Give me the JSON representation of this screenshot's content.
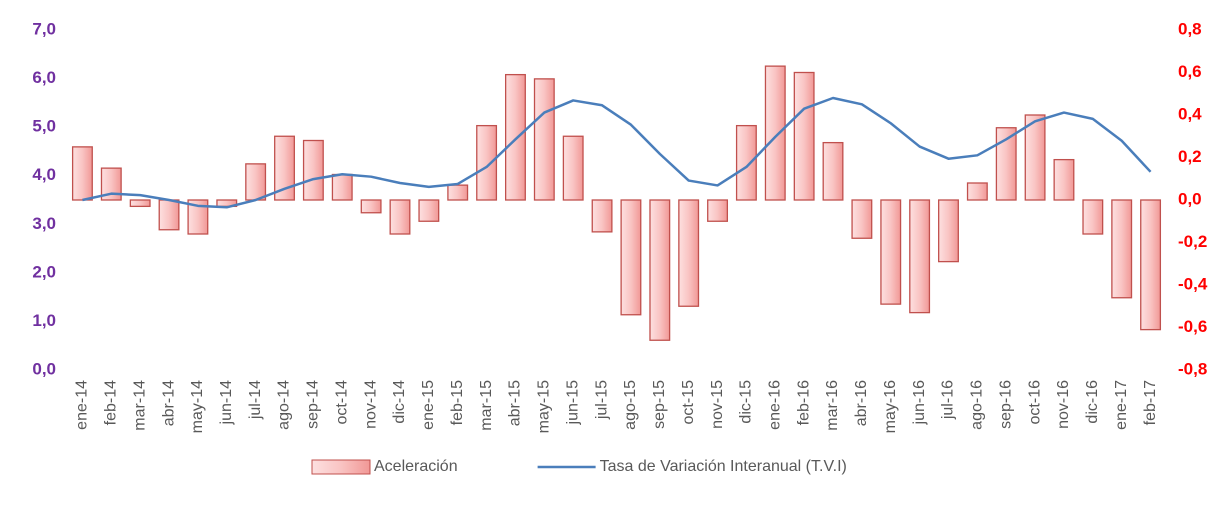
{
  "chart_data": {
    "type": "bar-line",
    "categories": [
      "ene-14",
      "feb-14",
      "mar-14",
      "abr-14",
      "may-14",
      "jun-14",
      "jul-14",
      "ago-14",
      "sep-14",
      "oct-14",
      "nov-14",
      "dic-14",
      "ene-15",
      "feb-15",
      "mar-15",
      "abr-15",
      "may-15",
      "jun-15",
      "jul-15",
      "ago-15",
      "sep-15",
      "oct-15",
      "nov-15",
      "dic-15",
      "ene-16",
      "feb-16",
      "mar-16",
      "abr-16",
      "may-16",
      "jun-16",
      "jul-16",
      "ago-16",
      "sep-16",
      "oct-16",
      "nov-16",
      "dic-16",
      "ene-17",
      "feb-17"
    ],
    "series": [
      {
        "name": "Aceleración",
        "type": "bar",
        "axis": "y2",
        "color": "#c0504d",
        "values": [
          0.25,
          0.15,
          -0.03,
          -0.14,
          -0.16,
          -0.03,
          0.17,
          0.3,
          0.28,
          0.12,
          -0.06,
          -0.16,
          -0.1,
          0.07,
          0.35,
          0.59,
          0.57,
          0.3,
          -0.15,
          -0.54,
          -0.66,
          -0.5,
          -0.1,
          0.35,
          0.63,
          0.6,
          0.27,
          -0.18,
          -0.49,
          -0.53,
          -0.29,
          0.08,
          0.34,
          0.4,
          0.19,
          -0.16,
          -0.46,
          -0.61
        ]
      },
      {
        "name": "Tasa de Variación Interanual (T.V.I)",
        "type": "line",
        "color": "#4a7ebb",
        "values": [
          3.5,
          3.63,
          3.6,
          3.5,
          3.38,
          3.35,
          3.5,
          3.73,
          3.93,
          4.03,
          3.98,
          3.85,
          3.77,
          3.83,
          4.18,
          4.75,
          5.3,
          5.55,
          5.45,
          5.05,
          4.45,
          3.9,
          3.8,
          4.18,
          4.8,
          5.38,
          5.6,
          5.47,
          5.08,
          4.6,
          4.35,
          4.42,
          4.75,
          5.12,
          5.3,
          5.17,
          4.72,
          4.08
        ]
      }
    ],
    "ylim": [
      0,
      7
    ],
    "yticks": [
      {
        "value": 0,
        "label": "0,0"
      },
      {
        "value": 1,
        "label": "1,0"
      },
      {
        "value": 2,
        "label": "2,0"
      },
      {
        "value": 3,
        "label": "3,0"
      },
      {
        "value": 4,
        "label": "4,0"
      },
      {
        "value": 5,
        "label": "5,0"
      },
      {
        "value": 6,
        "label": "6,0"
      },
      {
        "value": 7,
        "label": "7,0"
      }
    ],
    "y2lim": [
      -0.8,
      0.8
    ],
    "y2ticks": [
      {
        "value": -0.8,
        "label": "-0,8"
      },
      {
        "value": -0.6,
        "label": "-0,6"
      },
      {
        "value": -0.4,
        "label": "-0,4"
      },
      {
        "value": -0.2,
        "label": "-0,2"
      },
      {
        "value": 0,
        "label": "0,0"
      },
      {
        "value": 0.2,
        "label": "0,2"
      },
      {
        "value": 0.4,
        "label": "0,4"
      },
      {
        "value": 0.6,
        "label": "0,6"
      },
      {
        "value": 0.8,
        "label": "0,8"
      }
    ],
    "legend": "bottom"
  }
}
